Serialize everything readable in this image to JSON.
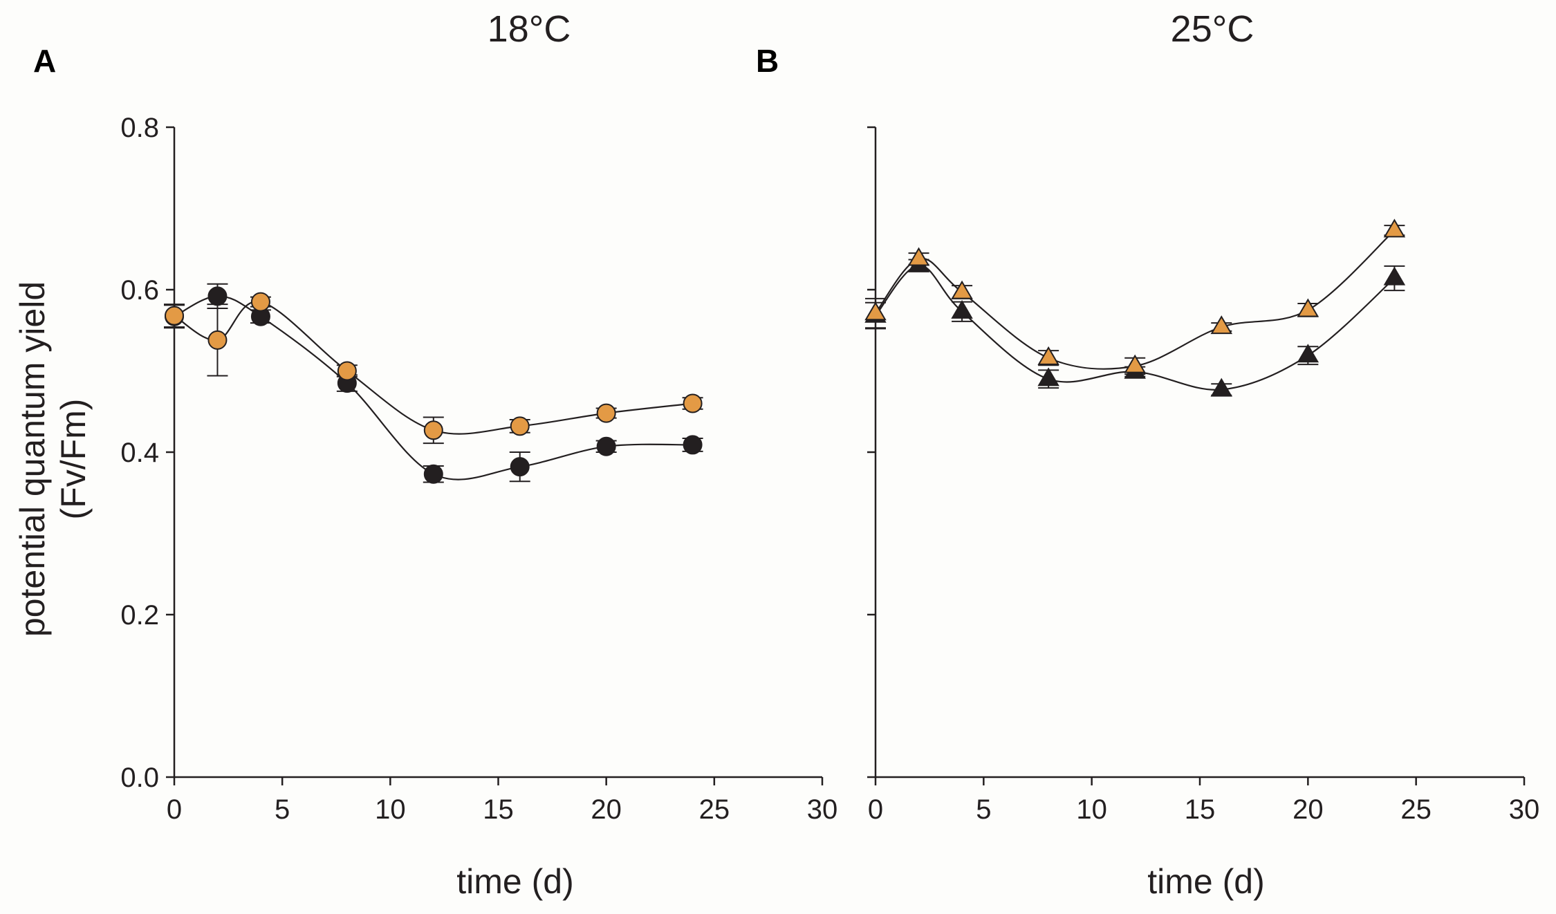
{
  "colors": {
    "orange": "#e39a45",
    "black": "#231f20",
    "axis": "#231f20"
  },
  "ylabel_line1": "potential quantum yield",
  "ylabel_line2": "(Fv/Fm)",
  "chart_data": [
    {
      "type": "scatter",
      "panel": "A",
      "title": "18°C",
      "xlabel": "time (d)",
      "ylabel": "potential quantum yield (Fv/Fm)",
      "xlim": [
        0,
        30
      ],
      "ylim": [
        0,
        0.8
      ],
      "xticks": [
        "0",
        "5",
        "10",
        "15",
        "20",
        "25",
        "30"
      ],
      "yticks": [
        "0.0",
        "0.2",
        "0.4",
        "0.6",
        "0.8"
      ],
      "marker": "circle",
      "series": [
        {
          "name": "orange",
          "color": "#e39a45",
          "x": [
            0,
            2,
            4,
            8,
            12,
            16,
            20,
            24
          ],
          "y": [
            0.568,
            0.538,
            0.585,
            0.5,
            0.427,
            0.432,
            0.448,
            0.46
          ],
          "err": [
            0.014,
            0.044,
            0.006,
            0.007,
            0.016,
            0.008,
            0.006,
            0.007
          ]
        },
        {
          "name": "black",
          "color": "#231f20",
          "x": [
            0,
            2,
            4,
            8,
            12,
            16,
            20,
            24
          ],
          "y": [
            0.567,
            0.592,
            0.567,
            0.485,
            0.373,
            0.382,
            0.407,
            0.409
          ],
          "err": [
            0.014,
            0.015,
            0.008,
            0.01,
            0.01,
            0.018,
            0.007,
            0.008
          ]
        }
      ]
    },
    {
      "type": "scatter",
      "panel": "B",
      "title": "25°C",
      "xlabel": "time (d)",
      "ylabel": "",
      "xlim": [
        0,
        30
      ],
      "ylim": [
        0,
        0.8
      ],
      "xticks": [
        "0",
        "5",
        "10",
        "15",
        "20",
        "25",
        "30"
      ],
      "yticks": [],
      "marker": "triangle",
      "series": [
        {
          "name": "orange",
          "color": "#e39a45",
          "x": [
            0,
            2,
            4,
            8,
            12,
            16,
            20,
            24
          ],
          "y": [
            0.571,
            0.638,
            0.597,
            0.516,
            0.506,
            0.554,
            0.575,
            0.673
          ],
          "err": [
            0.018,
            0.007,
            0.008,
            0.009,
            0.01,
            0.005,
            0.008,
            0.006
          ]
        },
        {
          "name": "black",
          "color": "#231f20",
          "x": [
            0,
            2,
            4,
            8,
            12,
            16,
            20,
            24
          ],
          "y": [
            0.568,
            0.63,
            0.573,
            0.49,
            0.499,
            0.477,
            0.519,
            0.614
          ],
          "err": [
            0.016,
            0.007,
            0.012,
            0.011,
            0.006,
            0.007,
            0.011,
            0.015
          ]
        }
      ]
    }
  ]
}
